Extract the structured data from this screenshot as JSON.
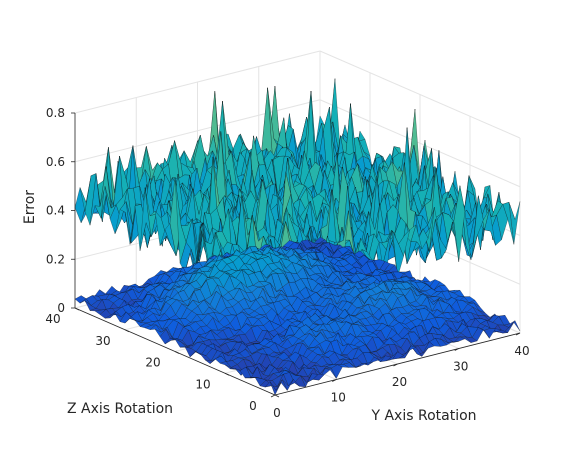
{
  "chart_data": {
    "type": "surface",
    "title": "",
    "xlabel": "Y Axis Rotation",
    "ylabel": "Z Axis Rotation",
    "zlabel": "Error",
    "xlim": [
      0,
      40
    ],
    "ylim": [
      0,
      40
    ],
    "zlim": [
      0,
      0.8
    ],
    "xticks": [
      "0",
      "10",
      "20",
      "30",
      "40"
    ],
    "yticks": [
      "0",
      "10",
      "20",
      "30",
      "40"
    ],
    "zticks": [
      "0",
      "0.2",
      "0.4",
      "0.6",
      "0.8"
    ],
    "grid": true,
    "colormap": "parula",
    "series": [
      {
        "z_range": [
          0.2,
          0.75
        ],
        "description_value_mean": 0.42
      },
      {
        "z_range": [
          0.0,
          0.3
        ],
        "description_value_mean": 0.08
      }
    ]
  }
}
